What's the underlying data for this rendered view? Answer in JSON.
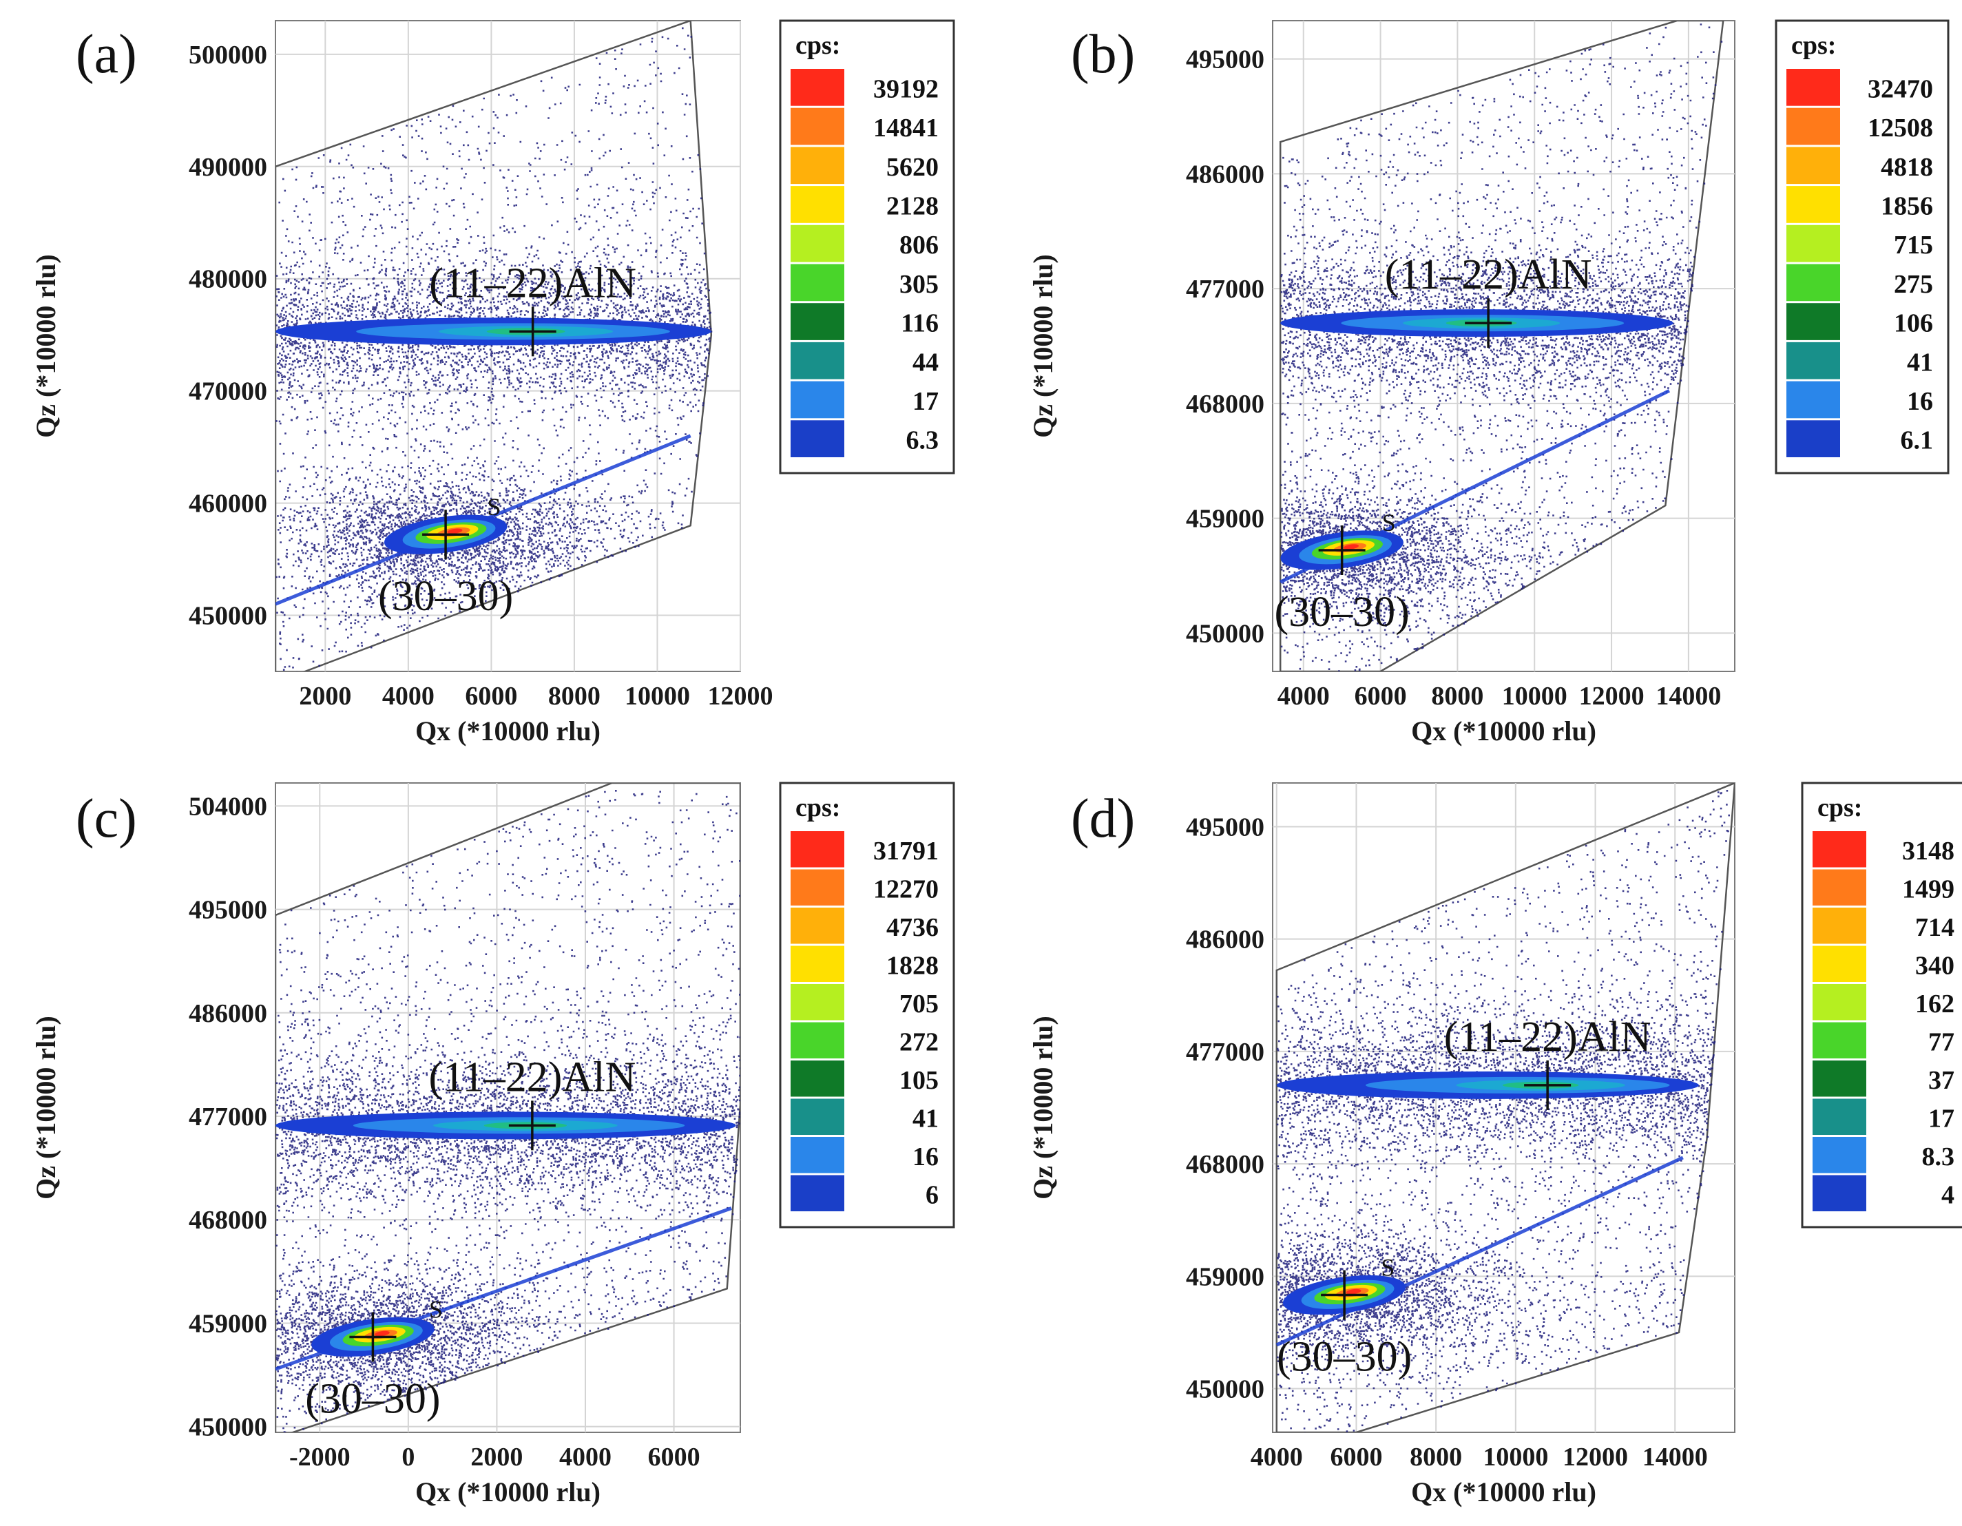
{
  "chart_data": [
    {
      "type": "heatmap",
      "panel_label": "(a)",
      "xlabel": "Qx (*10000 rlu)",
      "ylabel": "Qz (*10000 rlu)",
      "xlim": [
        800,
        12000
      ],
      "ylim": [
        445000,
        503000
      ],
      "xticks": [
        2000,
        4000,
        6000,
        8000,
        10000,
        12000
      ],
      "yticks": [
        450000,
        460000,
        470000,
        480000,
        490000,
        500000
      ],
      "legend": {
        "title": "cps:",
        "values": [
          "39192",
          "14841",
          "5620",
          "2128",
          "806",
          "305",
          "116",
          "44",
          "17",
          "6.3"
        ]
      },
      "annotations": [
        {
          "text": "(11–22)AlN",
          "x": 7000,
          "y": 475300
        },
        {
          "text": "(30–30)",
          "x": 4900,
          "y": 457200
        },
        {
          "text": "S",
          "x": 5400,
          "y": 459000
        }
      ],
      "scan_region": [
        [
          800,
          490000
        ],
        [
          10800,
          503000
        ],
        [
          11300,
          475000
        ],
        [
          10800,
          458000
        ],
        [
          800,
          444000
        ]
      ],
      "aln_band": {
        "y": 475300,
        "x_from": 800,
        "x_to": 11300
      },
      "streak": {
        "from": [
          800,
          451000
        ],
        "to": [
          10800,
          466000
        ]
      },
      "peaks": [
        {
          "name": "(11–22)AlN",
          "x": 7000,
          "y": 475300
        },
        {
          "name": "(30–30)",
          "x": 4900,
          "y": 457200
        }
      ]
    },
    {
      "type": "heatmap",
      "panel_label": "(b)",
      "xlabel": "Qx (*10000 rlu)",
      "ylabel": "Qz (*10000 rlu)",
      "xlim": [
        3200,
        15200
      ],
      "ylim": [
        447000,
        498000
      ],
      "xticks": [
        4000,
        6000,
        8000,
        10000,
        12000,
        14000
      ],
      "yticks": [
        450000,
        459000,
        468000,
        477000,
        486000,
        495000
      ],
      "legend": {
        "title": "cps:",
        "values": [
          "32470",
          "12508",
          "4818",
          "1856",
          "715",
          "275",
          "106",
          "41",
          "16",
          "6.1"
        ]
      },
      "annotations": [
        {
          "text": "(11–22)AlN",
          "x": 8800,
          "y": 474300
        },
        {
          "text": "(30–30)",
          "x": 5000,
          "y": 456500
        },
        {
          "text": "S",
          "x": 5500,
          "y": 459600
        }
      ],
      "scan_region": [
        [
          3400,
          488500
        ],
        [
          13700,
          498000
        ],
        [
          14900,
          498000
        ],
        [
          13400,
          460000
        ],
        [
          6000,
          447000
        ],
        [
          3400,
          447000
        ]
      ],
      "aln_band": {
        "y": 474300,
        "x_from": 3400,
        "x_to": 13600
      },
      "streak": {
        "from": [
          3400,
          454000
        ],
        "to": [
          13500,
          469000
        ]
      },
      "peaks": [
        {
          "name": "(11–22)AlN",
          "x": 8800,
          "y": 474300
        },
        {
          "name": "(30–30)",
          "x": 5000,
          "y": 456500
        }
      ]
    },
    {
      "type": "heatmap",
      "panel_label": "(c)",
      "xlabel": "Qx (*10000 rlu)",
      "ylabel": "Qz (*10000 rlu)",
      "xlim": [
        -3000,
        7500
      ],
      "ylim": [
        449500,
        506000
      ],
      "xticks": [
        -2000,
        0,
        2000,
        4000,
        6000
      ],
      "yticks": [
        450000,
        459000,
        468000,
        477000,
        486000,
        495000,
        504000
      ],
      "legend": {
        "title": "cps:",
        "values": [
          "31791",
          "12270",
          "4736",
          "1828",
          "705",
          "272",
          "105",
          "41",
          "16",
          "6"
        ]
      },
      "annotations": [
        {
          "text": "(11–22)AlN",
          "x": 2800,
          "y": 476200
        },
        {
          "text": "(30–30)",
          "x": -800,
          "y": 457800
        },
        {
          "text": "S",
          "x": 0,
          "y": 459600
        }
      ],
      "scan_region": [
        [
          -3000,
          494500
        ],
        [
          4600,
          506000
        ],
        [
          7500,
          506000
        ],
        [
          7500,
          478000
        ],
        [
          7200,
          462000
        ],
        [
          -3000,
          449000
        ]
      ],
      "aln_band": {
        "y": 476200,
        "x_from": -3000,
        "x_to": 7400
      },
      "streak": {
        "from": [
          -3000,
          455000
        ],
        "to": [
          7300,
          469000
        ]
      },
      "peaks": [
        {
          "name": "(11–22)AlN",
          "x": 2800,
          "y": 476200
        },
        {
          "name": "(30–30)",
          "x": -800,
          "y": 457800
        }
      ]
    },
    {
      "type": "heatmap",
      "panel_label": "(d)",
      "xlabel": "Qx (*10000 rlu)",
      "ylabel": "Qz (*10000 rlu)",
      "xlim": [
        3900,
        15500
      ],
      "ylim": [
        446500,
        498500
      ],
      "xticks": [
        4000,
        6000,
        8000,
        10000,
        12000,
        14000
      ],
      "yticks": [
        450000,
        459000,
        468000,
        477000,
        486000,
        495000
      ],
      "legend": {
        "title": "cps:",
        "values": [
          "3148",
          "1499",
          "714",
          "340",
          "162",
          "77",
          "37",
          "17",
          "8.3",
          "4"
        ]
      },
      "annotations": [
        {
          "text": "(11–22)AlN",
          "x": 10800,
          "y": 474300
        },
        {
          "text": "(30–30)",
          "x": 5700,
          "y": 457500
        },
        {
          "text": "S",
          "x": 6100,
          "y": 459500
        }
      ],
      "scan_region": [
        [
          4000,
          483500
        ],
        [
          15500,
          498500
        ],
        [
          14800,
          470000
        ],
        [
          14100,
          454500
        ],
        [
          6000,
          446500
        ],
        [
          4000,
          446500
        ]
      ],
      "aln_band": {
        "y": 474300,
        "x_from": 4000,
        "x_to": 14600
      },
      "streak": {
        "from": [
          4000,
          453500
        ],
        "to": [
          14200,
          468500
        ]
      },
      "peaks": [
        {
          "name": "(11–22)AlN",
          "x": 10800,
          "y": 474300
        },
        {
          "name": "(30–30)",
          "x": 5700,
          "y": 457500
        }
      ]
    }
  ],
  "colors": {
    "scale": [
      "#ff2a1a",
      "#ff7a1a",
      "#ffb00a",
      "#ffe000",
      "#b5ef20",
      "#49d52a",
      "#0f7a28",
      "#18908a",
      "#2a86ea",
      "#1a3fc8"
    ],
    "dots": "#1c1c7a",
    "band_outer": "#1b3fd4",
    "band_inner": "#1ca9d2",
    "band_core": "#22c07a"
  }
}
